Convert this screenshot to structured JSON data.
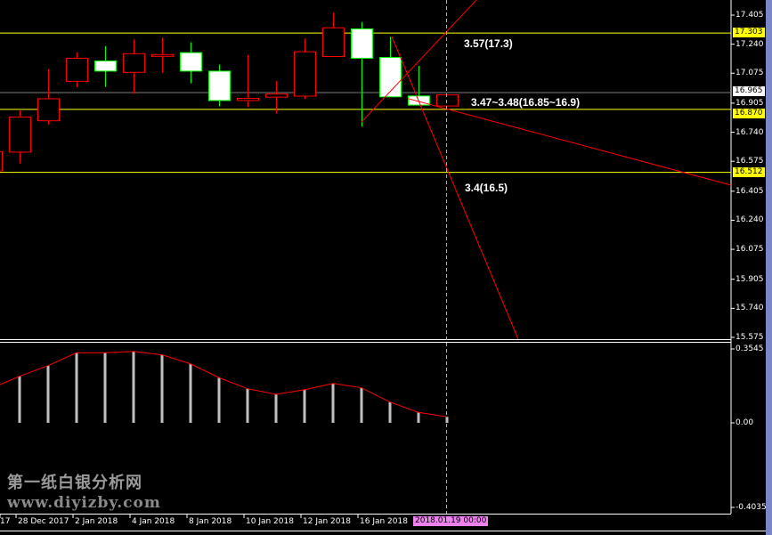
{
  "colors": {
    "up": "#ff0000",
    "down_outline": "#00ff00",
    "down_fill": "#ffffff",
    "level": "#ffff00",
    "current": "#808080",
    "cursor": "#ee82ee",
    "histogram": "#c0c0c0",
    "signal": "#ff0000"
  },
  "price_axis": {
    "ticks": [
      "17.405",
      "17.240",
      "17.075",
      "16.905",
      "16.740",
      "16.575",
      "16.405",
      "16.240",
      "16.075",
      "15.905",
      "15.740",
      "15.575"
    ],
    "current_price": "16.965",
    "levels": [
      "17.303",
      "16.870",
      "16.512"
    ]
  },
  "candles": [
    {
      "o": 16.52,
      "h": 16.66,
      "l": 16.46,
      "c": 16.63
    },
    {
      "o": 16.627,
      "h": 16.864,
      "l": 16.563,
      "c": 16.826
    },
    {
      "o": 16.805,
      "h": 17.099,
      "l": 16.783,
      "c": 16.93
    },
    {
      "o": 17.029,
      "h": 17.193,
      "l": 16.997,
      "c": 17.16
    },
    {
      "o": 17.145,
      "h": 17.23,
      "l": 16.998,
      "c": 17.087
    },
    {
      "o": 17.08,
      "h": 17.266,
      "l": 16.96,
      "c": 17.186
    },
    {
      "o": 17.178,
      "h": 17.277,
      "l": 17.078,
      "c": 17.181
    },
    {
      "o": 17.192,
      "h": 17.251,
      "l": 17.017,
      "c": 17.087
    },
    {
      "o": 17.087,
      "h": 17.125,
      "l": 16.887,
      "c": 16.92
    },
    {
      "o": 16.92,
      "h": 17.178,
      "l": 16.882,
      "c": 16.932
    },
    {
      "o": 16.939,
      "h": 17.031,
      "l": 16.847,
      "c": 16.957
    },
    {
      "o": 16.945,
      "h": 17.272,
      "l": 16.929,
      "c": 17.197
    },
    {
      "o": 17.17,
      "h": 17.418,
      "l": 17.17,
      "c": 17.333
    },
    {
      "o": 17.327,
      "h": 17.366,
      "l": 16.772,
      "c": 17.16
    },
    {
      "o": 17.165,
      "h": 17.282,
      "l": 16.941,
      "c": 16.941
    },
    {
      "o": 16.946,
      "h": 17.117,
      "l": 16.894,
      "c": 16.894
    },
    {
      "o": 16.889,
      "h": 16.952,
      "l": 16.889,
      "c": 16.952
    }
  ],
  "annotations": [
    "3.57(17.3)",
    "3.47~3.48(16.85~16.9)",
    "3.4(16.5)"
  ],
  "indicator": {
    "axis": [
      "0.3545",
      "0.00",
      "-0.4035"
    ],
    "values": [
      0.165,
      0.2234,
      0.2746,
      0.3361,
      0.3361,
      0.343,
      0.326,
      0.283,
      0.2165,
      0.1636,
      0.1367,
      0.1593,
      0.1892,
      0.1679,
      0.0995,
      0.05,
      0.0286
    ]
  },
  "time_axis": {
    "labels": [
      "17",
      "28 Dec 2017",
      "2 Jan 2018",
      "4 Jan 2018",
      "8 Jan 2018",
      "10 Jan 2018",
      "12 Jan 2018",
      "16 Jan 2018"
    ],
    "cursor_label": "2018.01.19 00:00"
  },
  "watermark": {
    "title": "第一纸白银分析网",
    "url": "www.diyizby.com"
  }
}
